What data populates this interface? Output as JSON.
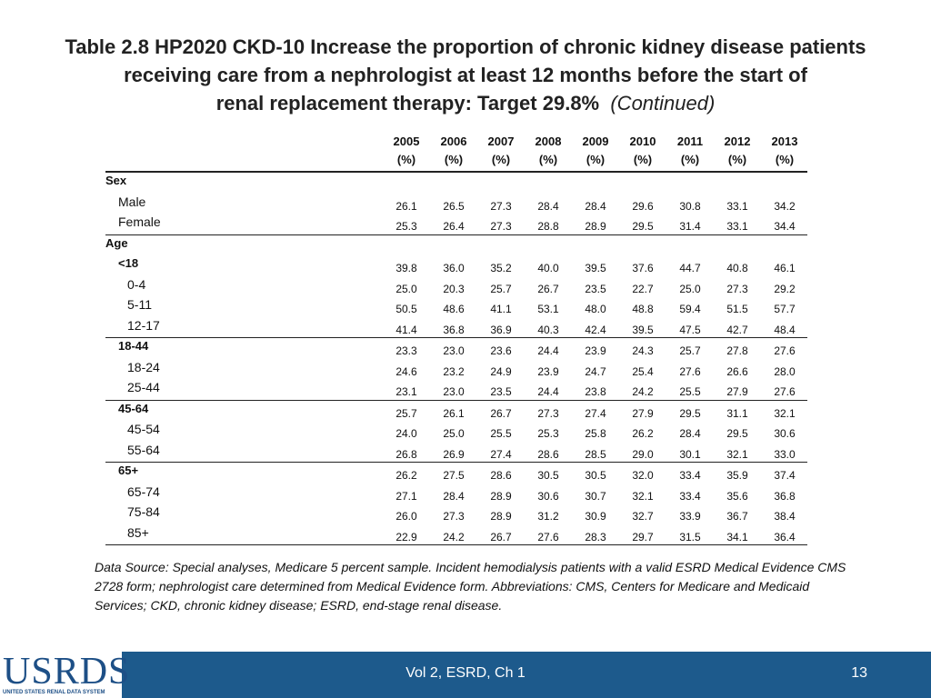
{
  "title": {
    "line1": "Table 2.8  HP2020 CKD-10 Increase the proportion of chronic kidney disease patients",
    "line2": "receiving care from a nephrologist at least 12 months before the start of",
    "line3": "renal replacement therapy: Target 29.8%",
    "continued": "(Continued)"
  },
  "table": {
    "years": [
      "2005",
      "2006",
      "2007",
      "2008",
      "2009",
      "2010",
      "2011",
      "2012",
      "2013"
    ],
    "unit": "(%)",
    "rows": [
      {
        "label": "Sex",
        "indent": 0,
        "bold": true,
        "values": []
      },
      {
        "label": "Male",
        "indent": 1,
        "bold": false,
        "values": [
          "26.1",
          "26.5",
          "27.3",
          "28.4",
          "28.4",
          "29.6",
          "30.8",
          "33.1",
          "34.2"
        ]
      },
      {
        "label": "Female",
        "indent": 1,
        "bold": false,
        "bottomLine": true,
        "values": [
          "25.3",
          "26.4",
          "27.3",
          "28.8",
          "28.9",
          "29.5",
          "31.4",
          "33.1",
          "34.4"
        ]
      },
      {
        "label": "Age",
        "indent": 0,
        "bold": true,
        "values": []
      },
      {
        "label": "<18",
        "indent": 1,
        "bold": true,
        "values": [
          "39.8",
          "36.0",
          "35.2",
          "40.0",
          "39.5",
          "37.6",
          "44.7",
          "40.8",
          "46.1"
        ]
      },
      {
        "label": "0-4",
        "indent": 2,
        "bold": false,
        "values": [
          "25.0",
          "20.3",
          "25.7",
          "26.7",
          "23.5",
          "22.7",
          "25.0",
          "27.3",
          "29.2"
        ]
      },
      {
        "label": "5-11",
        "indent": 2,
        "bold": false,
        "values": [
          "50.5",
          "48.6",
          "41.1",
          "53.1",
          "48.0",
          "48.8",
          "59.4",
          "51.5",
          "57.7"
        ]
      },
      {
        "label": "12-17",
        "indent": 2,
        "bold": false,
        "values": [
          "41.4",
          "36.8",
          "36.9",
          "40.3",
          "42.4",
          "39.5",
          "47.5",
          "42.7",
          "48.4"
        ]
      },
      {
        "label": "18-44",
        "indent": 1,
        "bold": true,
        "sep": true,
        "values": [
          "23.3",
          "23.0",
          "23.6",
          "24.4",
          "23.9",
          "24.3",
          "25.7",
          "27.8",
          "27.6"
        ]
      },
      {
        "label": "18-24",
        "indent": 2,
        "bold": false,
        "values": [
          "24.6",
          "23.2",
          "24.9",
          "23.9",
          "24.7",
          "25.4",
          "27.6",
          "26.6",
          "28.0"
        ]
      },
      {
        "label": "25-44",
        "indent": 2,
        "bold": false,
        "values": [
          "23.1",
          "23.0",
          "23.5",
          "24.4",
          "23.8",
          "24.2",
          "25.5",
          "27.9",
          "27.6"
        ]
      },
      {
        "label": "45-64",
        "indent": 1,
        "bold": true,
        "sep": true,
        "values": [
          "25.7",
          "26.1",
          "26.7",
          "27.3",
          "27.4",
          "27.9",
          "29.5",
          "31.1",
          "32.1"
        ]
      },
      {
        "label": "45-54",
        "indent": 2,
        "bold": false,
        "values": [
          "24.0",
          "25.0",
          "25.5",
          "25.3",
          "25.8",
          "26.2",
          "28.4",
          "29.5",
          "30.6"
        ]
      },
      {
        "label": "55-64",
        "indent": 2,
        "bold": false,
        "values": [
          "26.8",
          "26.9",
          "27.4",
          "28.6",
          "28.5",
          "29.0",
          "30.1",
          "32.1",
          "33.0"
        ]
      },
      {
        "label": "65+",
        "indent": 1,
        "bold": true,
        "sep": true,
        "values": [
          "26.2",
          "27.5",
          "28.6",
          "30.5",
          "30.5",
          "32.0",
          "33.4",
          "35.9",
          "37.4"
        ]
      },
      {
        "label": "65-74",
        "indent": 2,
        "bold": false,
        "values": [
          "27.1",
          "28.4",
          "28.9",
          "30.6",
          "30.7",
          "32.1",
          "33.4",
          "35.6",
          "36.8"
        ]
      },
      {
        "label": "75-84",
        "indent": 2,
        "bold": false,
        "values": [
          "26.0",
          "27.3",
          "28.9",
          "31.2",
          "30.9",
          "32.7",
          "33.9",
          "36.7",
          "38.4"
        ]
      },
      {
        "label": "85+",
        "indent": 2,
        "bold": false,
        "bottomLine": true,
        "values": [
          "22.9",
          "24.2",
          "26.7",
          "27.6",
          "28.3",
          "29.7",
          "31.5",
          "34.1",
          "36.4"
        ]
      }
    ]
  },
  "source": "Data Source: Special analyses, Medicare 5 percent sample. Incident hemodialysis patients with a valid ESRD Medical Evidence CMS 2728 form; nephrologist care determined from Medical Evidence form. Abbreviations:  CMS, Centers for Medicare and Medicaid Services; CKD, chronic kidney disease; ESRD, end-stage renal disease.",
  "footer": {
    "text": "Vol 2, ESRD, Ch 1",
    "page": "13"
  },
  "logo": {
    "name": "USRDS",
    "subtitle": "UNITED STATES RENAL DATA SYSTEM"
  },
  "colors": {
    "footer_bg": "#1d5a8c",
    "logo": "#1d4f86"
  }
}
